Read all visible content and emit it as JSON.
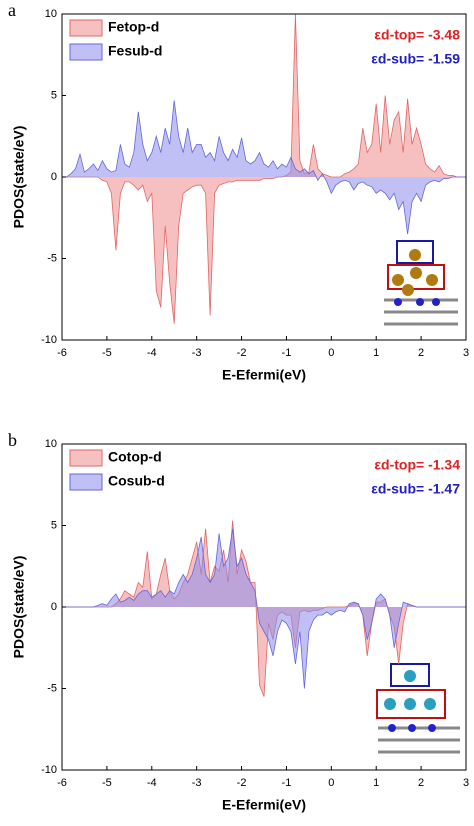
{
  "chart_data": [
    {
      "type": "area",
      "panel_label": "a",
      "ylabel": "PDOS(state/eV)",
      "xlabel": "E-Efermi(eV)",
      "xlim": [
        -6,
        3
      ],
      "ylim": [
        -10,
        10
      ],
      "xticks": [
        -6,
        -5,
        -4,
        -3,
        -2,
        -1,
        0,
        1,
        2,
        3
      ],
      "yticks": [
        -10,
        -5,
        0,
        5,
        10
      ],
      "annotations": [
        {
          "text": "εd-top= -3.48",
          "color": "#e02020"
        },
        {
          "text": "εd-sub= -1.59",
          "color": "#2020c0"
        }
      ],
      "x": [
        -6.0,
        -5.9,
        -5.8,
        -5.7,
        -5.6,
        -5.5,
        -5.4,
        -5.3,
        -5.2,
        -5.1,
        -5.0,
        -4.9,
        -4.8,
        -4.7,
        -4.6,
        -4.5,
        -4.4,
        -4.3,
        -4.2,
        -4.1,
        -4.0,
        -3.9,
        -3.8,
        -3.7,
        -3.6,
        -3.5,
        -3.4,
        -3.3,
        -3.2,
        -3.1,
        -3.0,
        -2.9,
        -2.8,
        -2.7,
        -2.6,
        -2.5,
        -2.4,
        -2.3,
        -2.2,
        -2.1,
        -2.0,
        -1.9,
        -1.8,
        -1.7,
        -1.6,
        -1.5,
        -1.4,
        -1.3,
        -1.2,
        -1.1,
        -1.0,
        -0.9,
        -0.8,
        -0.7,
        -0.6,
        -0.5,
        -0.4,
        -0.3,
        -0.2,
        -0.1,
        0.0,
        0.1,
        0.2,
        0.3,
        0.4,
        0.5,
        0.6,
        0.7,
        0.8,
        0.9,
        1.0,
        1.1,
        1.2,
        1.3,
        1.4,
        1.5,
        1.6,
        1.7,
        1.8,
        1.9,
        2.0,
        2.1,
        2.2,
        2.3,
        2.4,
        2.5,
        2.6,
        2.7,
        2.8,
        2.9,
        3.0
      ],
      "series": [
        {
          "name": "Fetop-d",
          "color": "#e06666",
          "values": [
            0,
            0,
            0,
            0,
            0,
            0,
            0,
            0,
            0,
            -0.2,
            -0.3,
            -1,
            -4.5,
            -1,
            -0.3,
            -0.3,
            -0.5,
            -0.8,
            -0.5,
            -1.5,
            -1,
            -7,
            -8,
            -3,
            -6.5,
            -9,
            -3,
            -1,
            -0.8,
            -0.6,
            -0.5,
            -0.5,
            -1,
            -8.5,
            -1,
            -0.5,
            -0.4,
            -0.3,
            -0.3,
            -0.2,
            -0.2,
            -0.2,
            -0.2,
            -0.2,
            -0.2,
            -0.1,
            -0.1,
            -0.1,
            0,
            0,
            0.1,
            0.3,
            10,
            1,
            0.2,
            0.3,
            2,
            0.5,
            0.2,
            0.1,
            0,
            0,
            0,
            0.2,
            0.3,
            0.5,
            0.8,
            3,
            1.5,
            2,
            4.5,
            1.5,
            5,
            2,
            3.5,
            4,
            1.5,
            4.8,
            2,
            3,
            2,
            0.8,
            0.5,
            0.3,
            0.7,
            0.2,
            0.1,
            0.1,
            0,
            0,
            0
          ]
        },
        {
          "name": "Fesub-d",
          "color": "#6666dd",
          "values": [
            0,
            0,
            0.2,
            0.5,
            1.4,
            0.3,
            0.5,
            0.8,
            0.4,
            1,
            0.5,
            0.3,
            0.4,
            2,
            0.8,
            0.6,
            1.5,
            4,
            2,
            1,
            1.5,
            2.5,
            1.5,
            3,
            2,
            4.7,
            2.5,
            1.5,
            3,
            1.5,
            2,
            2,
            1.2,
            1.5,
            1,
            2.5,
            1.5,
            1,
            1.7,
            1.2,
            2.4,
            1,
            0.8,
            1,
            1.5,
            0.8,
            0.6,
            1,
            0.5,
            0.8,
            0.6,
            1.2,
            0.5,
            0.3,
            0.5,
            0.2,
            0.4,
            -0.2,
            0.2,
            -0.3,
            -1,
            -0.5,
            -0.3,
            -0.2,
            -0.3,
            -0.8,
            -0.4,
            -0.3,
            -0.5,
            -0.6,
            -1,
            -0.8,
            -1,
            -1.4,
            -1,
            -2,
            -1.5,
            -3.5,
            -1.5,
            -1,
            -1.5,
            -0.5,
            -0.3,
            -0.2,
            -0.3,
            -0.1,
            -0.1,
            0,
            0,
            0,
            0
          ]
        }
      ]
    },
    {
      "type": "area",
      "panel_label": "b",
      "ylabel": "PDOS(state/eV)",
      "xlabel": "E-Efermi(eV)",
      "xlim": [
        -6,
        3
      ],
      "ylim": [
        -10,
        10
      ],
      "xticks": [
        -6,
        -5,
        -4,
        -3,
        -2,
        -1,
        0,
        1,
        2,
        3
      ],
      "yticks": [
        -10,
        -5,
        0,
        5,
        10
      ],
      "annotations": [
        {
          "text": "εd-top= -1.34",
          "color": "#e02020"
        },
        {
          "text": "εd-sub= -1.47",
          "color": "#2020c0"
        }
      ],
      "x": [
        -6.0,
        -5.9,
        -5.8,
        -5.7,
        -5.6,
        -5.5,
        -5.4,
        -5.3,
        -5.2,
        -5.1,
        -5.0,
        -4.9,
        -4.8,
        -4.7,
        -4.6,
        -4.5,
        -4.4,
        -4.3,
        -4.2,
        -4.1,
        -4.0,
        -3.9,
        -3.8,
        -3.7,
        -3.6,
        -3.5,
        -3.4,
        -3.3,
        -3.2,
        -3.1,
        -3.0,
        -2.9,
        -2.8,
        -2.7,
        -2.6,
        -2.5,
        -2.4,
        -2.3,
        -2.2,
        -2.1,
        -2.0,
        -1.9,
        -1.8,
        -1.7,
        -1.6,
        -1.5,
        -1.4,
        -1.3,
        -1.2,
        -1.1,
        -1.0,
        -0.9,
        -0.8,
        -0.7,
        -0.6,
        -0.5,
        -0.4,
        -0.3,
        -0.2,
        -0.1,
        0.0,
        0.1,
        0.2,
        0.3,
        0.4,
        0.5,
        0.6,
        0.7,
        0.8,
        0.9,
        1.0,
        1.1,
        1.2,
        1.3,
        1.4,
        1.5,
        1.6,
        1.7,
        1.8,
        1.9,
        2.0,
        2.1,
        2.2,
        2.3,
        2.4,
        2.5,
        2.6,
        2.7,
        2.8,
        2.9,
        3.0
      ],
      "series": [
        {
          "name": "Cotop-d",
          "color": "#e06666",
          "values": [
            0,
            0,
            0,
            0,
            0,
            0,
            0,
            0,
            0,
            0,
            0,
            0,
            0.2,
            0.5,
            1,
            0.8,
            0.6,
            1.5,
            1.2,
            3.4,
            0.5,
            0.8,
            2,
            3,
            1,
            0.5,
            0.8,
            1.5,
            2,
            3,
            4,
            2,
            4.8,
            1.5,
            2.5,
            2.2,
            3.5,
            1.5,
            5.3,
            2,
            3.5,
            2.8,
            1.5,
            1.5,
            -4.8,
            -5.5,
            -1,
            -2,
            -0.5,
            -0.3,
            -0.5,
            -0.5,
            -2.5,
            -0.3,
            -0.2,
            -0.3,
            -0.2,
            -0.2,
            -0.1,
            0,
            0,
            0,
            0,
            0,
            0.1,
            0.2,
            0.2,
            -0.5,
            -3,
            -1,
            0.3,
            0.3,
            0.5,
            -0.5,
            -1.2,
            -3.5,
            -1,
            0.2,
            0.1,
            0,
            0,
            0,
            0,
            0,
            0,
            0,
            0,
            0,
            0,
            0,
            0
          ]
        },
        {
          "name": "Cosub-d",
          "color": "#6666dd",
          "values": [
            0,
            0,
            0,
            0,
            0,
            0,
            0,
            0,
            0.1,
            0.2,
            0.1,
            0.5,
            0.8,
            0.3,
            0.4,
            0.6,
            0.4,
            0.8,
            1,
            1,
            0.6,
            0.8,
            1,
            0.6,
            1,
            0.8,
            1.5,
            2,
            1.5,
            2,
            3,
            4.3,
            2,
            1.5,
            2,
            4.5,
            2.5,
            3,
            4.8,
            2.5,
            3,
            2,
            1.5,
            1,
            -1,
            -1.5,
            -2,
            -3,
            -1.5,
            -0.8,
            -1,
            -1.5,
            -3.5,
            -1.5,
            -5,
            -1.5,
            -0.8,
            -0.5,
            -0.5,
            -0.3,
            -0.5,
            -0.3,
            -0.2,
            -0.3,
            0.2,
            0.3,
            0.2,
            -0.5,
            -2,
            -1,
            0.5,
            0.8,
            0.5,
            -0.5,
            -2.5,
            -1,
            0.3,
            0.2,
            0.1,
            0,
            0,
            0,
            0,
            0,
            0,
            0,
            0,
            0,
            0,
            0,
            0
          ]
        }
      ]
    }
  ]
}
